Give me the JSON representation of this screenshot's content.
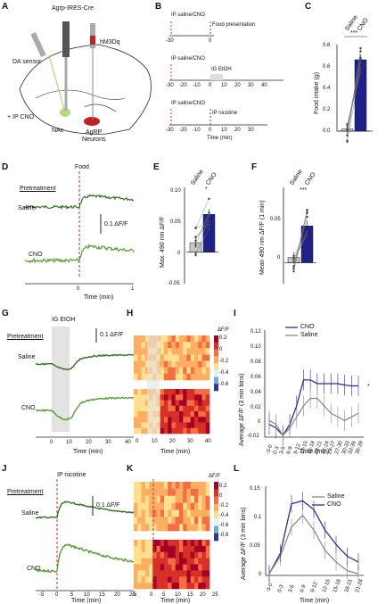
{
  "panels": {
    "A": {
      "letter": "A",
      "top_label": "Agrp-IRES-Cre",
      "virus_label": "hM3Dq",
      "sensor_label": "DA sensor",
      "ip_label": "+ IP CNO",
      "nac_label": "NAc",
      "agrp_label_1": "AgRP",
      "agrp_label_2": "Neurons"
    },
    "B": {
      "letter": "B",
      "row1_ip": "IP saline/CNO",
      "row1_event": "Food presentation",
      "row1_ticks": [
        "-30",
        "0"
      ],
      "row2_ip": "IP saline/CNO",
      "row2_event": "IG EtOH",
      "row2_ticks": [
        "-30",
        "-20",
        "-10",
        "0",
        "10",
        "20",
        "30",
        "40"
      ],
      "row3_ip": "IP saline/CNO",
      "row3_event": "IP nicotine",
      "row3_ticks": [
        "-30",
        "-20",
        "-10",
        "0",
        "10",
        "20",
        "30"
      ],
      "row3_xlabel": "Time (min)"
    },
    "C": {
      "letter": "C",
      "ylabel": "Food intake (g)",
      "ticks": [
        "0.0",
        "0.2",
        "0.4",
        "0.6",
        "0.8"
      ],
      "groups": [
        "Saline",
        "CNO"
      ],
      "sig": "***"
    },
    "D": {
      "letter": "D",
      "event": "Food",
      "pretreatment": "Pretreatment",
      "row_saline": "Saline",
      "row_cno": "CNO",
      "scale": "0.1 ΔF/F",
      "xticks": [
        "0",
        "1"
      ],
      "xlabel": "Time (min)"
    },
    "E": {
      "letter": "E",
      "ylabel": "Max. 490 nm ΔF/F",
      "ticks": [
        "-0.05",
        "0",
        "0.05",
        "0.10"
      ],
      "groups": [
        "Saline",
        "CNO"
      ],
      "sig": "*"
    },
    "F": {
      "letter": "F",
      "ylabel": "Mean 490 nm ΔF/F (1 min)",
      "ticks": [
        "0",
        "0.05"
      ],
      "groups": [
        "Saline",
        "CNO"
      ],
      "sig": "***"
    },
    "G": {
      "letter": "G",
      "event": "IG EtOH",
      "pretreatment": "Pretreatment",
      "row_saline": "Saline",
      "row_cno": "CNO",
      "scale": "0.1 ΔF/F",
      "xticks": [
        "0",
        "10",
        "20",
        "30",
        "40"
      ],
      "xlabel": "Time (min)"
    },
    "H": {
      "letter": "H",
      "cbar_title": "ΔF/F",
      "cbar_ticks": [
        "0.2",
        "0",
        "-0.2",
        "-0.4",
        "-0.6"
      ],
      "xticks": [
        "0",
        "10",
        "20",
        "30",
        "40"
      ],
      "xlabel": "Time (min)"
    },
    "I": {
      "letter": "I",
      "ylabel": "Average ΔF/F (3 min bins)",
      "xlabel": "Time (min)",
      "legend": [
        "CNO",
        "Saline"
      ],
      "sig": "*",
      "yticks": [
        "-0.02",
        "0",
        "0.02",
        "0.04",
        "0.06",
        "0.08",
        "0.10",
        "0.12"
      ]
    },
    "J": {
      "letter": "J",
      "event": "IP nicotine",
      "pretreatment": "Pretreatment",
      "row_saline": "Saline",
      "row_cno": "CNO",
      "scale": "0.1 ΔF/F",
      "xticks": [
        "-5",
        "0",
        "5",
        "10",
        "15",
        "20",
        "25"
      ],
      "xlabel": "Time (min)"
    },
    "K": {
      "letter": "K",
      "cbar_title": "ΔF/F",
      "cbar_ticks": [
        "0.2",
        "0",
        "-0.2",
        "-0.4",
        "-0.6",
        "-0.8"
      ],
      "xticks": [
        "-5",
        "0",
        "5",
        "10",
        "15",
        "20",
        "25"
      ],
      "xlabel": "Time (min)"
    },
    "L": {
      "letter": "L",
      "ylabel": "Average ΔF/F (3 min bins)",
      "xlabel": "Time (min)",
      "legend": [
        "Saline",
        "CNO"
      ],
      "yticks": [
        "0",
        "0.05",
        "0.1",
        "0.15"
      ]
    }
  },
  "colors": {
    "saline_dark": "#3b6e2a",
    "cno_green": "#5b9b3a",
    "event_red": "#d0312d",
    "bar_blue": "#20208a",
    "bar_gray": "#c8c8c8",
    "cno_line": "#2a2f8f",
    "saline_line": "#8c8c8c"
  },
  "chart_data": [
    {
      "type": "bar",
      "panel": "C",
      "categories": [
        "Saline",
        "CNO"
      ],
      "values": [
        0.02,
        0.66
      ],
      "ylabel": "Food intake (g)",
      "ylim": [
        0,
        0.8
      ]
    },
    {
      "type": "bar",
      "panel": "E",
      "categories": [
        "Saline",
        "CNO"
      ],
      "values": [
        0.015,
        0.06
      ],
      "ylabel": "Max. 490 nm ΔF/F",
      "ylim": [
        -0.05,
        0.1
      ]
    },
    {
      "type": "bar",
      "panel": "F",
      "categories": [
        "Saline",
        "CNO"
      ],
      "values": [
        0.005,
        0.035
      ],
      "ylabel": "Mean 490 nm ΔF/F (1 min)",
      "ylim": [
        -0.02,
        0.07
      ]
    },
    {
      "type": "line",
      "panel": "I",
      "x": [
        "-3-0",
        "0-3",
        "3-6",
        "6-9",
        "9-12",
        "12-15",
        "15-18",
        "18-21",
        "21-24",
        "24-27",
        "27-30",
        "30-33",
        "33-36",
        "36-39"
      ],
      "series": [
        {
          "name": "CNO",
          "values": [
            -0.005,
            -0.01,
            -0.02,
            -0.005,
            0.02,
            0.055,
            0.055,
            0.05,
            0.05,
            0.05,
            0.05,
            0.048,
            0.047,
            0.047
          ]
        },
        {
          "name": "Saline",
          "values": [
            0,
            -0.005,
            -0.02,
            -0.01,
            0.005,
            0.02,
            0.03,
            0.03,
            0.02,
            0.01,
            0.005,
            0,
            0.005,
            0.01
          ]
        }
      ],
      "xlabel": "Time (min)",
      "ylabel": "Average ΔF/F (3 min bins)",
      "ylim": [
        -0.02,
        0.12
      ]
    },
    {
      "type": "line",
      "panel": "L",
      "x": [
        "-3-0",
        "0-3",
        "3-6",
        "6-9",
        "9-12",
        "12-15",
        "15-18",
        "18-21",
        "21-24"
      ],
      "series": [
        {
          "name": "Saline",
          "values": [
            0,
            0.03,
            0.08,
            0.1,
            0.075,
            0.04,
            0.02,
            0.005,
            0
          ]
        },
        {
          "name": "CNO",
          "values": [
            0,
            0.035,
            0.12,
            0.125,
            0.11,
            0.075,
            0.05,
            0.03,
            0.02
          ]
        }
      ],
      "xlabel": "Time (min)",
      "ylabel": "Average ΔF/F (3 min bins)",
      "ylim": [
        0,
        0.15
      ]
    }
  ]
}
